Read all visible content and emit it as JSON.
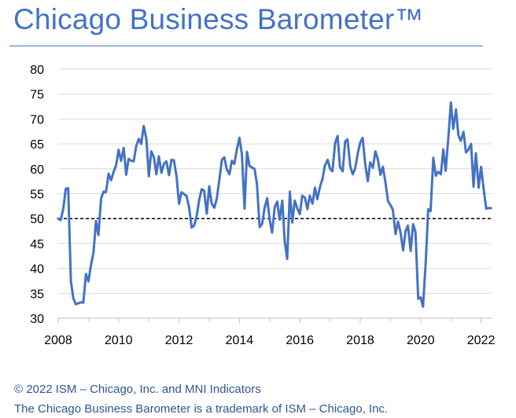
{
  "page": {
    "title": "Chicago Business Barometer™",
    "footer_lines": [
      "© 2022 ISM – Chicago, Inc. and MNI Indicators",
      "The Chicago Business Barometer is a trademark of ISM – Chicago, Inc."
    ]
  },
  "colors": {
    "title": "#4472c4",
    "series": "#4472c4",
    "footer": "#2f5597",
    "reference_line": "#000000"
  },
  "chart_data": {
    "type": "line",
    "title": "Chicago Business Barometer™",
    "xlabel": "",
    "ylabel": "",
    "xlim": [
      2008,
      2022.35
    ],
    "ylim": [
      30,
      80
    ],
    "xticks": [
      "2008",
      "2010",
      "2012",
      "2014",
      "2016",
      "2018",
      "2020",
      "2022"
    ],
    "yticks": [
      "30",
      "35",
      "40",
      "45",
      "50",
      "55",
      "60",
      "65",
      "70",
      "75",
      "80"
    ],
    "grid": "horizontal",
    "legend": "none",
    "reference_line": {
      "y": 50,
      "style": "dashed"
    },
    "series": [
      {
        "name": "",
        "x": [
          2008.0,
          2008.08,
          2008.17,
          2008.25,
          2008.33,
          2008.42,
          2008.5,
          2008.58,
          2008.67,
          2008.75,
          2008.83,
          2008.92,
          2009.0,
          2009.08,
          2009.17,
          2009.25,
          2009.33,
          2009.42,
          2009.5,
          2009.58,
          2009.67,
          2009.75,
          2009.83,
          2009.92,
          2010.0,
          2010.08,
          2010.17,
          2010.25,
          2010.33,
          2010.42,
          2010.5,
          2010.58,
          2010.67,
          2010.75,
          2010.83,
          2010.92,
          2011.0,
          2011.08,
          2011.17,
          2011.25,
          2011.33,
          2011.42,
          2011.5,
          2011.58,
          2011.67,
          2011.75,
          2011.83,
          2011.92,
          2012.0,
          2012.08,
          2012.17,
          2012.25,
          2012.33,
          2012.42,
          2012.5,
          2012.58,
          2012.67,
          2012.75,
          2012.83,
          2012.92,
          2013.0,
          2013.08,
          2013.17,
          2013.25,
          2013.33,
          2013.42,
          2013.5,
          2013.58,
          2013.67,
          2013.75,
          2013.83,
          2013.92,
          2014.0,
          2014.08,
          2014.17,
          2014.25,
          2014.33,
          2014.42,
          2014.5,
          2014.58,
          2014.67,
          2014.75,
          2014.83,
          2014.92,
          2015.0,
          2015.08,
          2015.17,
          2015.25,
          2015.33,
          2015.42,
          2015.5,
          2015.58,
          2015.67,
          2015.75,
          2015.83,
          2015.92,
          2016.0,
          2016.08,
          2016.17,
          2016.25,
          2016.33,
          2016.42,
          2016.5,
          2016.58,
          2016.67,
          2016.75,
          2016.83,
          2016.92,
          2017.0,
          2017.08,
          2017.17,
          2017.25,
          2017.33,
          2017.42,
          2017.5,
          2017.58,
          2017.67,
          2017.75,
          2017.83,
          2017.92,
          2018.0,
          2018.08,
          2018.17,
          2018.25,
          2018.33,
          2018.42,
          2018.5,
          2018.58,
          2018.67,
          2018.75,
          2018.83,
          2018.92,
          2019.0,
          2019.08,
          2019.17,
          2019.25,
          2019.33,
          2019.42,
          2019.5,
          2019.58,
          2019.67,
          2019.75,
          2019.83,
          2019.92,
          2020.0,
          2020.08,
          2020.17,
          2020.25,
          2020.33,
          2020.42,
          2020.5,
          2020.58,
          2020.67,
          2020.75,
          2020.83,
          2020.92,
          2021.0,
          2021.08,
          2021.17,
          2021.25,
          2021.33,
          2021.42,
          2021.5,
          2021.58,
          2021.67,
          2021.75,
          2021.83,
          2021.92,
          2022.0,
          2022.08,
          2022.17,
          2022.25,
          2022.33
        ],
        "values": [
          50.0,
          49.7,
          52.0,
          56.0,
          56.1,
          37.5,
          34.0,
          32.8,
          33.0,
          33.2,
          33.1,
          38.9,
          37.4,
          40.5,
          43.2,
          49.5,
          46.7,
          54.0,
          55.4,
          55.3,
          59.0,
          57.7,
          59.3,
          60.8,
          63.8,
          61.6,
          64.2,
          58.8,
          62.0,
          61.6,
          61.5,
          64.5,
          66.0,
          65.0,
          68.6,
          66.0,
          58.5,
          63.5,
          62.3,
          58.9,
          62.5,
          59.2,
          61.0,
          61.5,
          58.7,
          61.8,
          61.7,
          58.4,
          53.0,
          55.3,
          54.9,
          54.5,
          52.3,
          48.2,
          48.6,
          50.4,
          53.8,
          55.9,
          55.6,
          51.0,
          56.5,
          53.0,
          52.2,
          54.0,
          57.6,
          61.8,
          62.3,
          59.9,
          58.9,
          61.6,
          61.0,
          64.0,
          66.2,
          63.0,
          52.0,
          63.4,
          60.6,
          60.2,
          60.0,
          56.9,
          48.3,
          48.9,
          52.1,
          54.1,
          49.8,
          47.2,
          52.3,
          53.4,
          49.8,
          53.6,
          45.4,
          41.9,
          55.4,
          49.2,
          53.6,
          52.0,
          50.9,
          54.6,
          54.2,
          51.9,
          54.6,
          53.0,
          56.2,
          53.9,
          56.4,
          58.0,
          60.6,
          61.8,
          60.0,
          59.5,
          65.2,
          66.6,
          60.4,
          59.5,
          65.5,
          65.9,
          60.5,
          58.9,
          60.0,
          63.1,
          65.3,
          66.2,
          60.7,
          57.5,
          61.3,
          60.2,
          63.5,
          62.0,
          58.8,
          60.4,
          57.5,
          53.5,
          52.7,
          51.8,
          46.9,
          49.4,
          47.4,
          43.6,
          47.5,
          48.6,
          43.5,
          48.9,
          47.3,
          33.9,
          34.2,
          32.3,
          41.4,
          51.9,
          51.5,
          62.2,
          58.6,
          59.4,
          58.9,
          63.9,
          59.6,
          66.5,
          73.3,
          68.0,
          71.9,
          66.7,
          65.6,
          67.4,
          63.3,
          63.8,
          65.0,
          56.4,
          63.1,
          56.2,
          60.4,
          56.3,
          52.0,
          52.1,
          52.1
        ]
      }
    ]
  }
}
